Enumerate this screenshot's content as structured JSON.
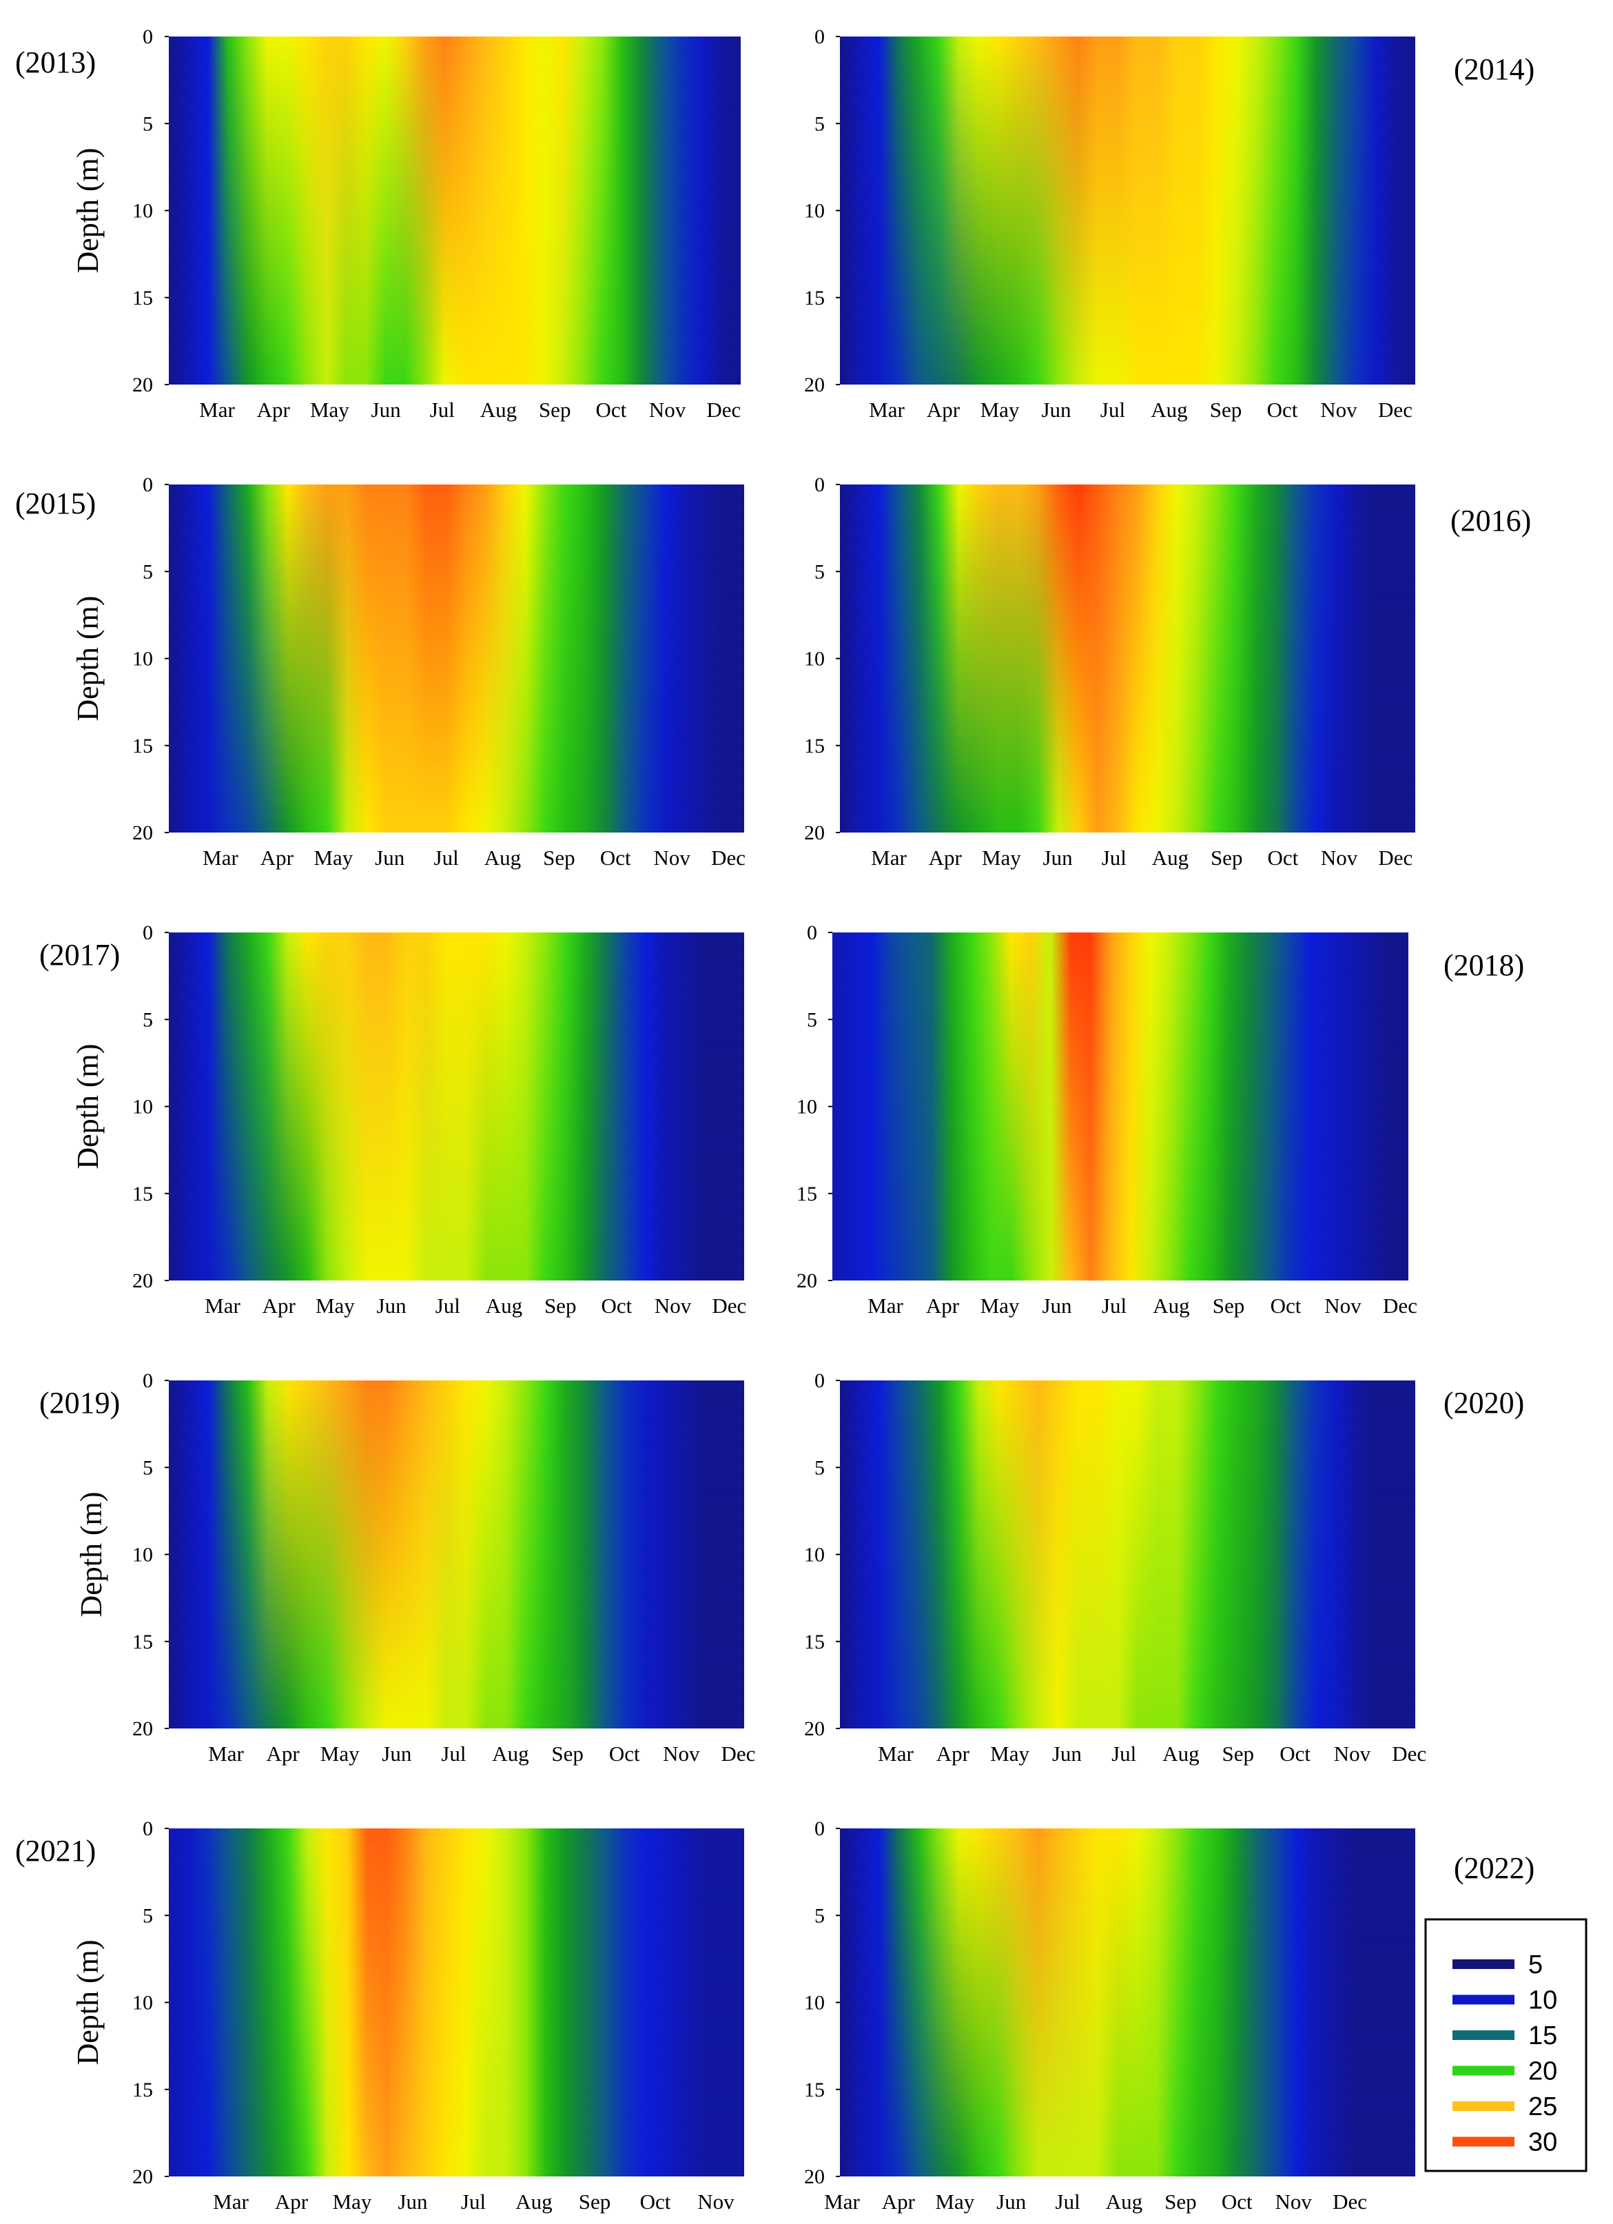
{
  "chart_data": [
    {
      "type": "heatmap",
      "title": "(2013)",
      "ylabel": "Depth (m)",
      "y_ticks": [
        "0",
        "5",
        "10",
        "15",
        "20"
      ],
      "ylim": [
        0,
        20
      ],
      "x_tick_labels": [
        "Mar",
        "Apr",
        "May",
        "Jun",
        "Jul",
        "Aug",
        "Sep",
        "Oct",
        "Nov",
        "Dec"
      ],
      "surface_profile": [
        6,
        8,
        10,
        19,
        21,
        23,
        23,
        24,
        25,
        25,
        24,
        23,
        25,
        27,
        28,
        27,
        26,
        25,
        24,
        23,
        24,
        22,
        21,
        19,
        16,
        13,
        11,
        9,
        7,
        6
      ],
      "bottom_profile": [
        6,
        8,
        10,
        13,
        17,
        19,
        20,
        21,
        22,
        21,
        21,
        20,
        20,
        21,
        23,
        24,
        24,
        24,
        24,
        23,
        22,
        21,
        20,
        19,
        16,
        13,
        11,
        9,
        7,
        6
      ]
    },
    {
      "type": "heatmap",
      "title": "(2014)",
      "ylabel": "",
      "y_ticks": [
        "0",
        "5",
        "10",
        "15",
        "20"
      ],
      "ylim": [
        0,
        20
      ],
      "x_tick_labels": [
        "Mar",
        "Apr",
        "May",
        "Jun",
        "Jul",
        "Aug",
        "Sep",
        "Oct",
        "Nov",
        "Dec"
      ],
      "surface_profile": [
        6,
        8,
        10,
        15,
        18,
        20,
        22,
        23,
        24,
        25,
        26,
        27,
        28,
        27,
        27,
        26,
        26,
        25,
        25,
        24,
        23,
        22,
        21,
        20,
        17,
        14,
        12,
        9,
        7,
        6
      ],
      "bottom_profile": [
        6,
        8,
        9,
        11,
        13,
        14,
        15,
        17,
        18,
        19,
        20,
        21,
        22,
        23,
        23,
        24,
        24,
        24,
        24,
        23,
        22,
        21,
        20,
        19,
        16,
        13,
        11,
        9,
        7,
        6
      ]
    },
    {
      "type": "heatmap",
      "title": "(2015)",
      "ylabel": "Depth (m)",
      "y_ticks": [
        "0",
        "5",
        "10",
        "15",
        "20"
      ],
      "ylim": [
        0,
        20
      ],
      "x_tick_labels": [
        "Mar",
        "Apr",
        "May",
        "Jun",
        "Jul",
        "Aug",
        "Sep",
        "Oct",
        "Nov",
        "Dec"
      ],
      "surface_profile": [
        6,
        8,
        10,
        14,
        18,
        21,
        24,
        26,
        27,
        27,
        28,
        28,
        28,
        29,
        29,
        28,
        27,
        25,
        23,
        21,
        20,
        19,
        17,
        14,
        12,
        10,
        8,
        7,
        6,
        6
      ],
      "bottom_profile": [
        6,
        8,
        9,
        11,
        12,
        14,
        17,
        19,
        20,
        22,
        24,
        25,
        25,
        25,
        25,
        24,
        23,
        22,
        21,
        20,
        19,
        18,
        16,
        13,
        11,
        9,
        8,
        7,
        6,
        6
      ]
    },
    {
      "type": "heatmap",
      "title": "(2016)",
      "ylabel": "",
      "y_ticks": [
        "0",
        "5",
        "10",
        "15",
        "20"
      ],
      "ylim": [
        0,
        20
      ],
      "x_tick_labels": [
        "Mar",
        "Apr",
        "May",
        "Jun",
        "Jul",
        "Aug",
        "Sep",
        "Oct",
        "Nov",
        "Dec"
      ],
      "surface_profile": [
        6,
        8,
        10,
        13,
        16,
        20,
        23,
        25,
        26,
        26,
        27,
        29,
        30,
        29,
        28,
        27,
        25,
        23,
        22,
        21,
        20,
        18,
        16,
        13,
        11,
        9,
        7,
        6,
        6,
        6
      ],
      "bottom_profile": [
        6,
        8,
        9,
        11,
        13,
        15,
        17,
        18,
        19,
        19,
        20,
        22,
        25,
        27,
        26,
        24,
        23,
        22,
        21,
        20,
        19,
        17,
        15,
        12,
        10,
        8,
        7,
        6,
        6,
        6
      ]
    },
    {
      "type": "heatmap",
      "title": "(2017)",
      "ylabel": "Depth (m)",
      "y_ticks": [
        "0",
        "5",
        "10",
        "15",
        "20"
      ],
      "ylim": [
        0,
        20
      ],
      "x_tick_labels": [
        "Mar",
        "Apr",
        "May",
        "Jun",
        "Jul",
        "Aug",
        "Sep",
        "Oct",
        "Nov",
        "Dec"
      ],
      "surface_profile": [
        6,
        8,
        10,
        15,
        18,
        20,
        22,
        24,
        25,
        25,
        26,
        26,
        25,
        25,
        24,
        24,
        24,
        23,
        22,
        21,
        20,
        18,
        15,
        12,
        10,
        8,
        7,
        6,
        6,
        6
      ],
      "bottom_profile": [
        6,
        8,
        9,
        11,
        13,
        15,
        17,
        19,
        21,
        22,
        23,
        23,
        23,
        22,
        22,
        22,
        21,
        21,
        21,
        20,
        19,
        17,
        14,
        12,
        10,
        8,
        7,
        6,
        6,
        6
      ]
    },
    {
      "type": "heatmap",
      "title": "(2018)",
      "ylabel": "",
      "y_ticks": [
        "0",
        "5",
        "10",
        "15",
        "20"
      ],
      "ylim": [
        0,
        20
      ],
      "x_tick_labels": [
        "Mar",
        "Apr",
        "May",
        "Jun",
        "Jul",
        "Aug",
        "Sep",
        "Oct",
        "Nov",
        "Dec"
      ],
      "surface_profile": [
        8,
        9,
        10,
        12,
        13,
        14,
        18,
        20,
        21,
        24,
        25,
        22,
        30,
        30,
        27,
        25,
        23,
        22,
        21,
        20,
        18,
        16,
        14,
        12,
        10,
        9,
        8,
        7,
        6,
        6
      ],
      "bottom_profile": [
        8,
        9,
        10,
        11,
        12,
        13,
        17,
        19,
        20,
        20,
        21,
        22,
        26,
        28,
        26,
        24,
        22,
        21,
        20,
        19,
        17,
        15,
        13,
        11,
        10,
        9,
        8,
        7,
        6,
        6
      ]
    },
    {
      "type": "heatmap",
      "title": "(2019)",
      "ylabel": "Depth (m)",
      "y_ticks": [
        "0",
        "5",
        "10",
        "15",
        "20"
      ],
      "ylim": [
        0,
        20
      ],
      "x_tick_labels": [
        "Mar",
        "Apr",
        "May",
        "Jun",
        "Jul",
        "Aug",
        "Sep",
        "Oct",
        "Nov",
        "Dec"
      ],
      "surface_profile": [
        6,
        8,
        10,
        15,
        19,
        22,
        24,
        25,
        26,
        27,
        28,
        28,
        27,
        26,
        25,
        24,
        23,
        22,
        21,
        20,
        18,
        16,
        13,
        11,
        9,
        8,
        7,
        6,
        6,
        6
      ],
      "bottom_profile": [
        6,
        8,
        9,
        11,
        13,
        15,
        17,
        19,
        20,
        21,
        22,
        23,
        23,
        23,
        22,
        22,
        21,
        21,
        20,
        19,
        18,
        16,
        13,
        11,
        9,
        8,
        7,
        6,
        6,
        6
      ]
    },
    {
      "type": "heatmap",
      "title": "(2020)",
      "ylabel": "",
      "y_ticks": [
        "0",
        "5",
        "10",
        "15",
        "20"
      ],
      "ylim": [
        0,
        20
      ],
      "x_tick_labels": [
        "Mar",
        "Apr",
        "May",
        "Jun",
        "Jul",
        "Aug",
        "Sep",
        "Oct",
        "Nov",
        "Dec"
      ],
      "surface_profile": [
        6,
        8,
        10,
        12,
        14,
        17,
        20,
        22,
        24,
        25,
        26,
        25,
        24,
        24,
        23,
        23,
        22,
        22,
        21,
        20,
        19,
        18,
        16,
        13,
        11,
        9,
        7,
        6,
        6,
        6
      ],
      "bottom_profile": [
        6,
        8,
        9,
        11,
        12,
        14,
        17,
        19,
        20,
        21,
        22,
        23,
        22,
        22,
        22,
        21,
        21,
        21,
        20,
        19,
        18,
        17,
        15,
        12,
        10,
        9,
        7,
        6,
        6,
        6
      ]
    },
    {
      "type": "heatmap",
      "title": "(2021)",
      "ylabel": "Depth (m)",
      "y_ticks": [
        "0",
        "5",
        "10",
        "15",
        "20"
      ],
      "ylim": [
        0,
        20
      ],
      "x_tick_labels": [
        "Mar",
        "Apr",
        "May",
        "Jun",
        "Jul",
        "Aug",
        "Sep",
        "Oct",
        "Nov"
      ],
      "surface_profile": [
        8,
        9,
        11,
        13,
        15,
        18,
        20,
        22,
        24,
        25,
        29,
        29,
        28,
        26,
        25,
        24,
        23,
        22,
        21,
        19,
        17,
        15,
        13,
        11,
        10,
        9,
        8,
        7,
        7,
        7
      ],
      "bottom_profile": [
        8,
        9,
        10,
        12,
        14,
        16,
        18,
        20,
        22,
        24,
        26,
        27,
        26,
        25,
        24,
        23,
        22,
        22,
        21,
        19,
        17,
        15,
        13,
        11,
        10,
        9,
        8,
        7,
        7,
        7
      ]
    },
    {
      "type": "heatmap",
      "title": "(2022)",
      "ylabel": "",
      "y_ticks": [
        "0",
        "5",
        "10",
        "15",
        "20"
      ],
      "ylim": [
        0,
        20
      ],
      "x_tick_labels": [
        "Mar",
        "Apr",
        "May",
        "Jun",
        "Jul",
        "Aug",
        "Sep",
        "Oct",
        "Nov",
        "Dec"
      ],
      "surface_profile": [
        6,
        8,
        10,
        15,
        19,
        21,
        23,
        24,
        25,
        26,
        27,
        26,
        25,
        24,
        24,
        23,
        22,
        21,
        20,
        19,
        17,
        14,
        12,
        10,
        8,
        7,
        6,
        6,
        6,
        6
      ],
      "bottom_profile": [
        6,
        8,
        9,
        11,
        13,
        15,
        17,
        19,
        20,
        21,
        22,
        22,
        22,
        22,
        21,
        21,
        21,
        20,
        19,
        18,
        16,
        14,
        12,
        10,
        8,
        7,
        6,
        6,
        6,
        6
      ]
    }
  ],
  "legend": {
    "entries": [
      {
        "label": "5",
        "color": "#15147a"
      },
      {
        "label": "10",
        "color": "#0c18c8"
      },
      {
        "label": "15",
        "color": "#0f6d78"
      },
      {
        "label": "20",
        "color": "#2fd317"
      },
      {
        "label": "25",
        "color": "#ffc21a"
      },
      {
        "label": "30",
        "color": "#ff4d10"
      }
    ]
  }
}
